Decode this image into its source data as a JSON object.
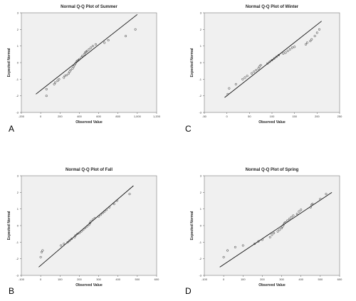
{
  "chart_data": [
    {
      "type": "scatter",
      "panel_label": "A",
      "title": "Normal Q-Q Plot of Summer",
      "xlabel": "Observed Value",
      "ylabel": "Expected Normal",
      "xlim": [
        -200,
        1200
      ],
      "ylim": [
        -3,
        3
      ],
      "x_ticks": [
        -200,
        0,
        200,
        400,
        600,
        800,
        1000,
        1200
      ],
      "x_tick_labels": [
        "-200",
        "0",
        "200",
        "400",
        "600",
        "800",
        "1,000",
        "1,200"
      ],
      "y_ticks": [
        -3,
        -2,
        -1,
        0,
        1,
        2,
        3
      ],
      "y_tick_labels": [
        "-3",
        "-2",
        "-1",
        "0",
        "1",
        "2",
        "3"
      ],
      "line": {
        "x": [
          -50,
          1000
        ],
        "y": [
          -1.9,
          2.9
        ]
      },
      "points": [
        {
          "x": 60,
          "y": -2.0
        },
        {
          "x": 60,
          "y": -1.6
        },
        {
          "x": 140,
          "y": -1.3
        },
        {
          "x": 150,
          "y": -1.2
        },
        {
          "x": 175,
          "y": -1.1
        },
        {
          "x": 190,
          "y": -1.0
        },
        {
          "x": 240,
          "y": -0.9
        },
        {
          "x": 250,
          "y": -0.8
        },
        {
          "x": 270,
          "y": -0.75
        },
        {
          "x": 290,
          "y": -0.65
        },
        {
          "x": 300,
          "y": -0.55
        },
        {
          "x": 310,
          "y": -0.45
        },
        {
          "x": 330,
          "y": -0.35
        },
        {
          "x": 340,
          "y": -0.25
        },
        {
          "x": 350,
          "y": -0.15
        },
        {
          "x": 360,
          "y": -0.05
        },
        {
          "x": 370,
          "y": 0.05
        },
        {
          "x": 380,
          "y": 0.1
        },
        {
          "x": 390,
          "y": 0.15
        },
        {
          "x": 400,
          "y": 0.2
        },
        {
          "x": 420,
          "y": 0.3
        },
        {
          "x": 430,
          "y": 0.4
        },
        {
          "x": 450,
          "y": 0.5
        },
        {
          "x": 460,
          "y": 0.6
        },
        {
          "x": 470,
          "y": 0.65
        },
        {
          "x": 480,
          "y": 0.7
        },
        {
          "x": 500,
          "y": 0.8
        },
        {
          "x": 520,
          "y": 0.9
        },
        {
          "x": 540,
          "y": 1.0
        },
        {
          "x": 570,
          "y": 1.1
        },
        {
          "x": 660,
          "y": 1.2
        },
        {
          "x": 700,
          "y": 1.35
        },
        {
          "x": 880,
          "y": 1.6
        },
        {
          "x": 980,
          "y": 2.0
        }
      ]
    },
    {
      "type": "scatter",
      "panel_label": "C",
      "title": "Normal Q-Q Plot of Winter",
      "xlabel": "Observed Value",
      "ylabel": "Expected Normal",
      "xlim": [
        -50,
        250
      ],
      "ylim": [
        -3,
        3
      ],
      "x_ticks": [
        -50,
        0,
        50,
        100,
        150,
        200,
        250
      ],
      "x_tick_labels": [
        "-50",
        "0",
        "50",
        "100",
        "150",
        "200",
        "250"
      ],
      "y_ticks": [
        -3,
        -2,
        -1,
        0,
        1,
        2,
        3
      ],
      "y_tick_labels": [
        "-3",
        "-2",
        "-1",
        "0",
        "1",
        "2",
        "3"
      ],
      "line": {
        "x": [
          -5,
          210
        ],
        "y": [
          -2.1,
          2.5
        ]
      },
      "points": [
        {
          "x": 2,
          "y": -1.9
        },
        {
          "x": 5,
          "y": -1.55
        },
        {
          "x": 20,
          "y": -1.3
        },
        {
          "x": 35,
          "y": -1.0
        },
        {
          "x": 40,
          "y": -0.9
        },
        {
          "x": 45,
          "y": -0.8
        },
        {
          "x": 55,
          "y": -0.65
        },
        {
          "x": 60,
          "y": -0.55
        },
        {
          "x": 65,
          "y": -0.45
        },
        {
          "x": 70,
          "y": -0.35
        },
        {
          "x": 72,
          "y": -0.25
        },
        {
          "x": 75,
          "y": -0.15
        },
        {
          "x": 90,
          "y": -0.05
        },
        {
          "x": 95,
          "y": 0.05
        },
        {
          "x": 100,
          "y": 0.15
        },
        {
          "x": 105,
          "y": 0.25
        },
        {
          "x": 110,
          "y": 0.35
        },
        {
          "x": 115,
          "y": 0.45
        },
        {
          "x": 125,
          "y": 0.55
        },
        {
          "x": 130,
          "y": 0.6
        },
        {
          "x": 135,
          "y": 0.7
        },
        {
          "x": 140,
          "y": 0.8
        },
        {
          "x": 145,
          "y": 0.9
        },
        {
          "x": 150,
          "y": 0.95
        },
        {
          "x": 175,
          "y": 1.1
        },
        {
          "x": 178,
          "y": 1.2
        },
        {
          "x": 185,
          "y": 1.3
        },
        {
          "x": 188,
          "y": 1.4
        },
        {
          "x": 195,
          "y": 1.6
        },
        {
          "x": 200,
          "y": 1.8
        },
        {
          "x": 205,
          "y": 2.0
        }
      ]
    },
    {
      "type": "scatter",
      "panel_label": "B",
      "title": "Normal Q-Q Plot of Fall",
      "xlabel": "Observed Value",
      "ylabel": "Expected Normal",
      "xlim": [
        -100,
        600
      ],
      "ylim": [
        -3,
        3
      ],
      "x_ticks": [
        -100,
        0,
        100,
        200,
        300,
        400,
        500,
        600
      ],
      "x_tick_labels": [
        "-100",
        "0",
        "100",
        "200",
        "300",
        "400",
        "500",
        "600"
      ],
      "y_ticks": [
        -3,
        -2,
        -1,
        0,
        1,
        2,
        3
      ],
      "y_tick_labels": [
        "-3",
        "-2",
        "-1",
        "0",
        "1",
        "2",
        "3"
      ],
      "line": {
        "x": [
          -10,
          480
        ],
        "y": [
          -2.5,
          2.4
        ]
      },
      "points": [
        {
          "x": 0,
          "y": -1.9
        },
        {
          "x": 5,
          "y": -1.6
        },
        {
          "x": 10,
          "y": -1.5
        },
        {
          "x": 105,
          "y": -1.2
        },
        {
          "x": 120,
          "y": -1.1
        },
        {
          "x": 140,
          "y": -1.0
        },
        {
          "x": 150,
          "y": -0.9
        },
        {
          "x": 160,
          "y": -0.8
        },
        {
          "x": 175,
          "y": -0.7
        },
        {
          "x": 180,
          "y": -0.6
        },
        {
          "x": 190,
          "y": -0.5
        },
        {
          "x": 200,
          "y": -0.45
        },
        {
          "x": 210,
          "y": -0.35
        },
        {
          "x": 220,
          "y": -0.25
        },
        {
          "x": 230,
          "y": -0.15
        },
        {
          "x": 240,
          "y": -0.05
        },
        {
          "x": 250,
          "y": 0.05
        },
        {
          "x": 255,
          "y": 0.15
        },
        {
          "x": 260,
          "y": 0.25
        },
        {
          "x": 270,
          "y": 0.35
        },
        {
          "x": 280,
          "y": 0.45
        },
        {
          "x": 300,
          "y": 0.55
        },
        {
          "x": 310,
          "y": 0.65
        },
        {
          "x": 320,
          "y": 0.75
        },
        {
          "x": 330,
          "y": 0.85
        },
        {
          "x": 340,
          "y": 0.95
        },
        {
          "x": 355,
          "y": 1.1
        },
        {
          "x": 380,
          "y": 1.3
        },
        {
          "x": 395,
          "y": 1.5
        },
        {
          "x": 460,
          "y": 1.9
        }
      ]
    },
    {
      "type": "scatter",
      "panel_label": "D",
      "title": "Normal Q-Q Plot of Spring",
      "xlabel": "Observed Value",
      "ylabel": "Expected Normal",
      "xlim": [
        -100,
        600
      ],
      "ylim": [
        -3,
        3
      ],
      "x_ticks": [
        -100,
        0,
        100,
        200,
        300,
        400,
        500,
        600
      ],
      "x_tick_labels": [
        "-100",
        "0",
        "100",
        "200",
        "300",
        "400",
        "500",
        "600"
      ],
      "y_ticks": [
        -3,
        -2,
        -1,
        0,
        1,
        2,
        3
      ],
      "y_tick_labels": [
        "-3",
        "-2",
        "-1",
        "0",
        "1",
        "2",
        "3"
      ],
      "line": {
        "x": [
          -20,
          560
        ],
        "y": [
          -2.5,
          2.0
        ]
      },
      "points": [
        {
          "x": 0,
          "y": -1.9
        },
        {
          "x": 20,
          "y": -1.5
        },
        {
          "x": 60,
          "y": -1.3
        },
        {
          "x": 100,
          "y": -1.2
        },
        {
          "x": 160,
          "y": -1.1
        },
        {
          "x": 180,
          "y": -0.95
        },
        {
          "x": 200,
          "y": -0.85
        },
        {
          "x": 240,
          "y": -0.7
        },
        {
          "x": 250,
          "y": -0.55
        },
        {
          "x": 260,
          "y": -0.45
        },
        {
          "x": 280,
          "y": -0.35
        },
        {
          "x": 290,
          "y": -0.25
        },
        {
          "x": 300,
          "y": -0.15
        },
        {
          "x": 305,
          "y": -0.05
        },
        {
          "x": 310,
          "y": 0.05
        },
        {
          "x": 315,
          "y": 0.15
        },
        {
          "x": 320,
          "y": 0.2
        },
        {
          "x": 330,
          "y": 0.3
        },
        {
          "x": 340,
          "y": 0.4
        },
        {
          "x": 350,
          "y": 0.5
        },
        {
          "x": 360,
          "y": 0.6
        },
        {
          "x": 380,
          "y": 0.7
        },
        {
          "x": 390,
          "y": 0.85
        },
        {
          "x": 400,
          "y": 0.95
        },
        {
          "x": 450,
          "y": 1.1
        },
        {
          "x": 455,
          "y": 1.25
        },
        {
          "x": 460,
          "y": 1.3
        },
        {
          "x": 500,
          "y": 1.6
        },
        {
          "x": 530,
          "y": 1.9
        }
      ]
    }
  ]
}
